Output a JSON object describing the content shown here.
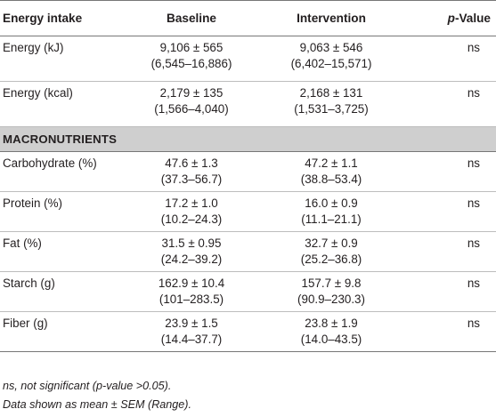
{
  "table": {
    "headers": {
      "col1": "Energy intake",
      "col2": "Baseline",
      "col3": "Intervention",
      "col4_italic": "p",
      "col4_rest": "-Value"
    },
    "energy_rows": [
      {
        "label": "Energy (kJ)",
        "baseline": "9,106 ± 565",
        "baseline_range": "(6,545–16,886)",
        "intervention": "9,063 ± 546",
        "intervention_range": "(6,402–15,571)",
        "p": "ns"
      },
      {
        "label": "Energy (kcal)",
        "baseline": "2,179 ± 135",
        "baseline_range": "(1,566–4,040)",
        "intervention": "2,168 ± 131",
        "intervention_range": "(1,531–3,725)",
        "p": "ns"
      }
    ],
    "section_label": "MACRONUTRIENTS",
    "macro_rows": [
      {
        "label": "Carbohydrate (%)",
        "baseline": "47.6 ± 1.3",
        "baseline_range": "(37.3–56.7)",
        "intervention": "47.2 ± 1.1",
        "intervention_range": "(38.8–53.4)",
        "p": "ns"
      },
      {
        "label": "Protein (%)",
        "baseline": "17.2 ± 1.0",
        "baseline_range": "(10.2–24.3)",
        "intervention": "16.0 ± 0.9",
        "intervention_range": "(11.1–21.1)",
        "p": "ns"
      },
      {
        "label": "Fat (%)",
        "baseline": "31.5 ± 0.95",
        "baseline_range": "(24.2–39.2)",
        "intervention": "32.7 ± 0.9",
        "intervention_range": "(25.2–36.8)",
        "p": "ns"
      },
      {
        "label": "Starch (g)",
        "baseline": "162.9 ± 10.4",
        "baseline_range": "(101–283.5)",
        "intervention": "157.7 ± 9.8",
        "intervention_range": "(90.9–230.3)",
        "p": "ns"
      },
      {
        "label": "Fiber (g)",
        "baseline": "23.9 ± 1.5",
        "baseline_range": "(14.4–37.7)",
        "intervention": "23.8 ± 1.9",
        "intervention_range": "(14.0–43.5)",
        "p": "ns"
      }
    ]
  },
  "footnotes": {
    "line1": "ns, not significant (p-value >0.05).",
    "line2": "Data shown as mean ± SEM (Range)."
  },
  "colors": {
    "section_bg": "#cfcfcf",
    "text": "#231f20",
    "rule": "#777777"
  }
}
